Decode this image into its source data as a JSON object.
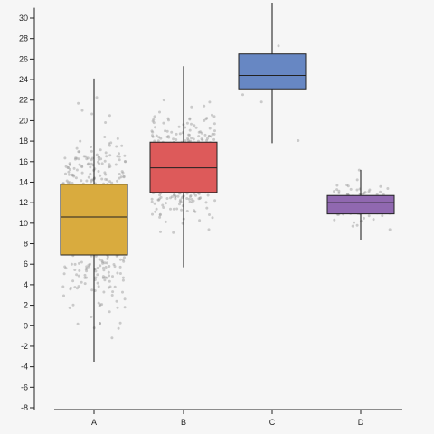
{
  "chart_data": {
    "type": "boxplot",
    "title": "",
    "xlabel": "",
    "ylabel": "",
    "ylim": [
      -8,
      31
    ],
    "yticks": [
      -8,
      -6,
      -4,
      -2,
      0,
      2,
      4,
      6,
      8,
      10,
      12,
      14,
      16,
      18,
      20,
      22,
      24,
      26,
      28,
      30
    ],
    "grid": false,
    "jitter_points": true,
    "categories": [
      "A",
      "B",
      "C",
      "D"
    ],
    "boxes": [
      {
        "category": "A",
        "min": -3.5,
        "q1": 6.9,
        "median": 10.6,
        "q3": 13.8,
        "max": 24.1,
        "color": "#d9ab3e",
        "n_points": 500,
        "spread": 4.2
      },
      {
        "category": "B",
        "min": 5.7,
        "q1": 13.0,
        "median": 15.4,
        "q3": 17.9,
        "max": 25.3,
        "color": "#dd5a5a",
        "n_points": 600,
        "spread": 2.2
      },
      {
        "category": "C",
        "min": 17.8,
        "q1": 23.1,
        "median": 24.4,
        "q3": 26.5,
        "max": 31.5,
        "color": "#6787c3",
        "n_points": 12,
        "spread": 2.8
      },
      {
        "category": "D",
        "min": 8.4,
        "q1": 10.9,
        "median": 12.0,
        "q3": 12.7,
        "max": 15.2,
        "color": "#9068b0",
        "n_points": 120,
        "spread": 1.0
      }
    ]
  }
}
